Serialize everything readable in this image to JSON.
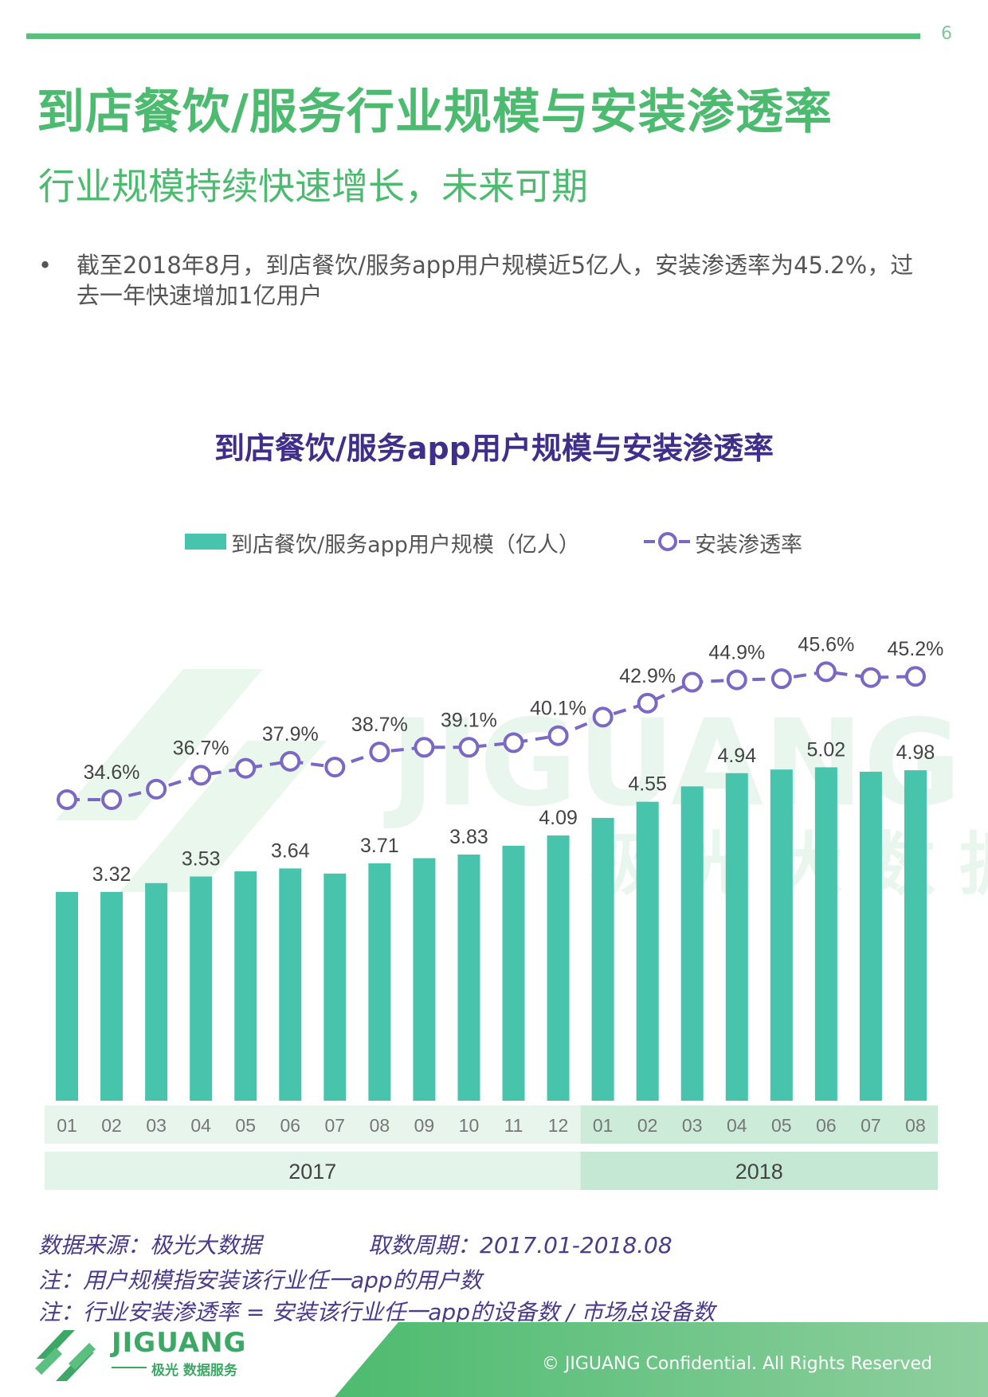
{
  "page": {
    "number": "6",
    "title": "到店餐饮/服务行业规模与安装渗透率",
    "subtitle": "行业规模持续快速增长，未来可期",
    "bullet_symbol": "•",
    "bullet": "截至2018年8月，到店餐饮/服务app用户规模近5亿人，安装渗透率为45.2%，过去一年快速增加1亿用户"
  },
  "chart_data": {
    "type": "bar",
    "title": "到店餐饮/服务app用户规模与安装渗透率",
    "categories": [
      "01",
      "02",
      "03",
      "04",
      "05",
      "06",
      "07",
      "08",
      "09",
      "10",
      "11",
      "12",
      "01",
      "02",
      "03",
      "04",
      "05",
      "06",
      "07",
      "08"
    ],
    "years": [
      {
        "label": "2017",
        "count": 12
      },
      {
        "label": "2018",
        "count": 8
      }
    ],
    "series": [
      {
        "name": "到店餐饮/服务app用户规模（亿人）",
        "type": "bar",
        "color": "#48c4ad",
        "values": [
          3.32,
          3.32,
          3.44,
          3.53,
          3.6,
          3.64,
          3.57,
          3.71,
          3.78,
          3.83,
          3.95,
          4.09,
          4.33,
          4.55,
          4.76,
          4.94,
          4.99,
          5.02,
          4.96,
          4.98
        ],
        "labels": [
          null,
          "3.32",
          null,
          "3.53",
          null,
          "3.64",
          null,
          "3.71",
          null,
          "3.83",
          null,
          "4.09",
          null,
          "4.55",
          null,
          "4.94",
          null,
          "5.02",
          null,
          "4.98"
        ]
      },
      {
        "name": "安装渗透率",
        "type": "line",
        "color": "#7b68c4",
        "values": [
          34.6,
          34.6,
          35.5,
          36.7,
          37.3,
          37.9,
          37.4,
          38.7,
          39.1,
          39.1,
          39.5,
          40.1,
          41.7,
          42.9,
          44.7,
          44.9,
          45.0,
          45.6,
          45.1,
          45.2
        ],
        "labels": [
          null,
          "34.6%",
          null,
          "36.7%",
          null,
          "37.9%",
          null,
          "38.7%",
          null,
          "39.1%",
          null,
          "40.1%",
          null,
          "42.9%",
          null,
          "44.9%",
          null,
          "45.6%",
          null,
          "45.2%"
        ]
      }
    ],
    "watermark": {
      "brand": "JIGUANG",
      "text": "极光大数据",
      "color": "#4dbb6f"
    }
  },
  "footnotes": {
    "source": "数据来源：极光大数据",
    "period": "取数周期：2017.01-2018.08",
    "note1": "注：用户规模指安装该行业任一app的用户数",
    "note2": "注：行业安装渗透率 = 安装该行业任一app的设备数 / 市场总设备数"
  },
  "footer": {
    "logo_word": "JIGUANG",
    "logo_sub": "极光 数据服务",
    "copyright": "© JIGUANG Confidential. All Rights Reserved"
  }
}
